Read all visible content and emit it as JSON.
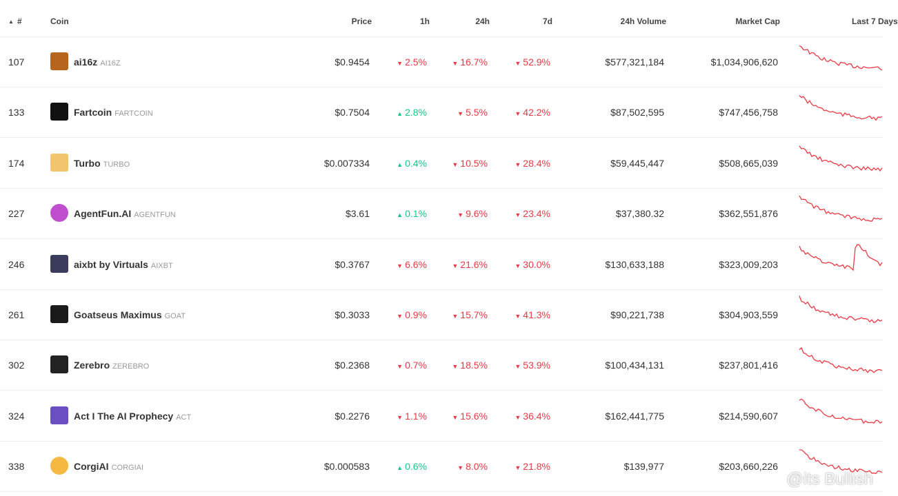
{
  "header": {
    "rank": "#",
    "coin": "Coin",
    "price": "Price",
    "h1": "1h",
    "h24": "24h",
    "d7": "7d",
    "volume": "24h Volume",
    "market_cap": "Market Cap",
    "sparkline": "Last 7 Days"
  },
  "rows": [
    {
      "rank": "107",
      "name": "ai16z",
      "symbol": "AI16Z",
      "price": "$0.9454",
      "h1": {
        "text": "2.5%",
        "dir": "down"
      },
      "h24": {
        "text": "16.7%",
        "dir": "down"
      },
      "d7": {
        "text": "52.9%",
        "dir": "down"
      },
      "volume": "$577,321,184",
      "market_cap": "$1,034,906,620"
    },
    {
      "rank": "133",
      "name": "Fartcoin",
      "symbol": "FARTCOIN",
      "price": "$0.7504",
      "h1": {
        "text": "2.8%",
        "dir": "up"
      },
      "h24": {
        "text": "5.5%",
        "dir": "down"
      },
      "d7": {
        "text": "42.2%",
        "dir": "down"
      },
      "volume": "$87,502,595",
      "market_cap": "$747,456,758"
    },
    {
      "rank": "174",
      "name": "Turbo",
      "symbol": "TURBO",
      "price": "$0.007334",
      "h1": {
        "text": "0.4%",
        "dir": "up"
      },
      "h24": {
        "text": "10.5%",
        "dir": "down"
      },
      "d7": {
        "text": "28.4%",
        "dir": "down"
      },
      "volume": "$59,445,447",
      "market_cap": "$508,665,039"
    },
    {
      "rank": "227",
      "name": "AgentFun.AI",
      "symbol": "AGENTFUN",
      "price": "$3.61",
      "h1": {
        "text": "0.1%",
        "dir": "up"
      },
      "h24": {
        "text": "9.6%",
        "dir": "down"
      },
      "d7": {
        "text": "23.4%",
        "dir": "down"
      },
      "volume": "$37,380.32",
      "market_cap": "$362,551,876"
    },
    {
      "rank": "246",
      "name": "aixbt by Virtuals",
      "symbol": "AIXBT",
      "price": "$0.3767",
      "h1": {
        "text": "6.6%",
        "dir": "down"
      },
      "h24": {
        "text": "21.6%",
        "dir": "down"
      },
      "d7": {
        "text": "30.0%",
        "dir": "down"
      },
      "volume": "$130,633,188",
      "market_cap": "$323,009,203"
    },
    {
      "rank": "261",
      "name": "Goatseus Maximus",
      "symbol": "GOAT",
      "price": "$0.3033",
      "h1": {
        "text": "0.9%",
        "dir": "down"
      },
      "h24": {
        "text": "15.7%",
        "dir": "down"
      },
      "d7": {
        "text": "41.3%",
        "dir": "down"
      },
      "volume": "$90,221,738",
      "market_cap": "$304,903,559"
    },
    {
      "rank": "302",
      "name": "Zerebro",
      "symbol": "ZEREBRO",
      "price": "$0.2368",
      "h1": {
        "text": "0.7%",
        "dir": "down"
      },
      "h24": {
        "text": "18.5%",
        "dir": "down"
      },
      "d7": {
        "text": "53.9%",
        "dir": "down"
      },
      "volume": "$100,434,131",
      "market_cap": "$237,801,416"
    },
    {
      "rank": "324",
      "name": "Act I The AI Prophecy",
      "symbol": "ACT",
      "price": "$0.2276",
      "h1": {
        "text": "1.1%",
        "dir": "down"
      },
      "h24": {
        "text": "15.6%",
        "dir": "down"
      },
      "d7": {
        "text": "36.4%",
        "dir": "down"
      },
      "volume": "$162,441,775",
      "market_cap": "$214,590,607"
    },
    {
      "rank": "338",
      "name": "CorgiAI",
      "symbol": "CORGIAI",
      "price": "$0.000583",
      "h1": {
        "text": "0.6%",
        "dir": "up"
      },
      "h24": {
        "text": "8.0%",
        "dir": "down"
      },
      "d7": {
        "text": "21.8%",
        "dir": "down"
      },
      "volume": "$139,977",
      "market_cap": "$203,660,226"
    }
  ],
  "watermark": "@its Bullish"
}
